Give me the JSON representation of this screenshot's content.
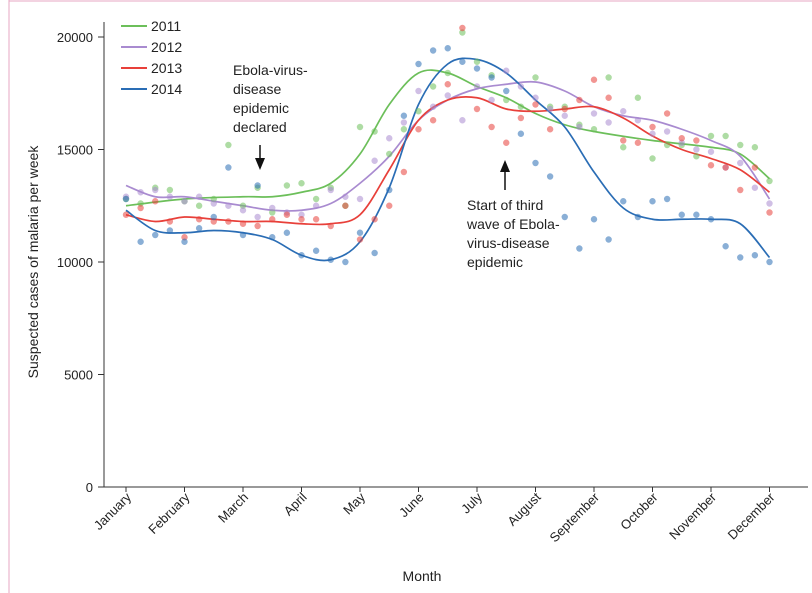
{
  "chart_data": {
    "type": "line",
    "xlabel": "Month",
    "ylabel": "Suspected cases of malaria per week",
    "ylim": [
      0,
      20500
    ],
    "yticks": [
      0,
      5000,
      10000,
      15000,
      20000
    ],
    "ytick_labels": [
      "0",
      "5000",
      "10000",
      "15000",
      "20000"
    ],
    "months": [
      "January",
      "February",
      "March",
      "April",
      "May",
      "June",
      "July",
      "August",
      "September",
      "October",
      "November",
      "December"
    ],
    "legend_position": "top-left",
    "grid": false,
    "series": [
      {
        "name": "2011",
        "color": "#6cbf5a",
        "smooth": [
          [
            0,
            12500
          ],
          [
            1,
            12800
          ],
          [
            2,
            12900
          ],
          [
            2.5,
            12900
          ],
          [
            3,
            13100
          ],
          [
            3.5,
            13500
          ],
          [
            4,
            14800
          ],
          [
            4.5,
            17000
          ],
          [
            5,
            18400
          ],
          [
            5.5,
            18400
          ],
          [
            6,
            17800
          ],
          [
            6.5,
            17300
          ],
          [
            7,
            16600
          ],
          [
            7.5,
            16100
          ],
          [
            8,
            15800
          ],
          [
            9,
            15400
          ],
          [
            10,
            15100
          ],
          [
            10.5,
            14800
          ],
          [
            11,
            13700
          ]
        ],
        "points": [
          [
            0,
            12800
          ],
          [
            0.25,
            12600
          ],
          [
            0.5,
            13300
          ],
          [
            0.75,
            13200
          ],
          [
            1,
            12700
          ],
          [
            1.25,
            12500
          ],
          [
            1.5,
            12800
          ],
          [
            1.75,
            15200
          ],
          [
            2,
            12500
          ],
          [
            2.25,
            13300
          ],
          [
            2.5,
            12200
          ],
          [
            2.75,
            13400
          ],
          [
            3,
            13500
          ],
          [
            3.25,
            12800
          ],
          [
            3.5,
            13300
          ],
          [
            3.75,
            12500
          ],
          [
            4,
            16000
          ],
          [
            4.25,
            15800
          ],
          [
            4.5,
            14800
          ],
          [
            4.75,
            15900
          ],
          [
            5,
            16700
          ],
          [
            5.25,
            17800
          ],
          [
            5.5,
            18400
          ],
          [
            5.75,
            20200
          ],
          [
            6,
            18900
          ],
          [
            6.25,
            18300
          ],
          [
            6.5,
            17200
          ],
          [
            6.75,
            16900
          ],
          [
            7,
            18200
          ],
          [
            7.25,
            16900
          ],
          [
            7.5,
            16900
          ],
          [
            7.75,
            16100
          ],
          [
            8,
            15900
          ],
          [
            8.25,
            18200
          ],
          [
            8.5,
            15100
          ],
          [
            8.75,
            17300
          ],
          [
            9,
            14600
          ],
          [
            9.25,
            15200
          ],
          [
            9.5,
            15200
          ],
          [
            9.75,
            14700
          ],
          [
            10,
            15600
          ],
          [
            10.25,
            15600
          ],
          [
            10.5,
            15200
          ],
          [
            10.75,
            15100
          ],
          [
            11,
            13600
          ]
        ]
      },
      {
        "name": "2012",
        "color": "#a98bd0",
        "smooth": [
          [
            0,
            13400
          ],
          [
            0.5,
            12900
          ],
          [
            1,
            12900
          ],
          [
            1.5,
            12700
          ],
          [
            2,
            12500
          ],
          [
            2.5,
            12300
          ],
          [
            3,
            12300
          ],
          [
            3.5,
            12600
          ],
          [
            4,
            13500
          ],
          [
            4.5,
            14700
          ],
          [
            5,
            16300
          ],
          [
            5.5,
            17200
          ],
          [
            6,
            17700
          ],
          [
            6.5,
            17900
          ],
          [
            7,
            18000
          ],
          [
            7.5,
            17600
          ],
          [
            8,
            16900
          ],
          [
            8.5,
            16500
          ],
          [
            9,
            16300
          ],
          [
            9.5,
            15900
          ],
          [
            10,
            15400
          ],
          [
            10.5,
            14700
          ],
          [
            11,
            12800
          ]
        ],
        "points": [
          [
            0,
            12900
          ],
          [
            0.25,
            13100
          ],
          [
            0.5,
            13200
          ],
          [
            0.75,
            12900
          ],
          [
            1,
            12700
          ],
          [
            1.25,
            12900
          ],
          [
            1.5,
            12600
          ],
          [
            1.75,
            12500
          ],
          [
            2,
            12300
          ],
          [
            2.25,
            12000
          ],
          [
            2.5,
            12400
          ],
          [
            2.75,
            12200
          ],
          [
            3,
            12100
          ],
          [
            3.25,
            12500
          ],
          [
            3.5,
            13200
          ],
          [
            3.75,
            12900
          ],
          [
            4,
            12800
          ],
          [
            4.25,
            14500
          ],
          [
            4.5,
            15500
          ],
          [
            4.75,
            16200
          ],
          [
            5,
            17600
          ],
          [
            5.25,
            16900
          ],
          [
            5.5,
            17400
          ],
          [
            5.75,
            16300
          ],
          [
            6,
            17800
          ],
          [
            6.25,
            17200
          ],
          [
            6.5,
            18500
          ],
          [
            6.75,
            17800
          ],
          [
            7,
            17300
          ],
          [
            7.25,
            16800
          ],
          [
            7.5,
            16500
          ],
          [
            7.75,
            16000
          ],
          [
            8,
            16600
          ],
          [
            8.25,
            16200
          ],
          [
            8.5,
            16700
          ],
          [
            8.75,
            16300
          ],
          [
            9,
            15700
          ],
          [
            9.25,
            15800
          ],
          [
            9.5,
            15300
          ],
          [
            9.75,
            15000
          ],
          [
            10,
            14900
          ],
          [
            10.25,
            14200
          ],
          [
            10.5,
            14400
          ],
          [
            10.75,
            13300
          ],
          [
            11,
            12600
          ]
        ]
      },
      {
        "name": "2013",
        "color": "#e8403a",
        "smooth": [
          [
            0,
            12100
          ],
          [
            0.5,
            11800
          ],
          [
            1,
            12000
          ],
          [
            1.5,
            11900
          ],
          [
            2,
            11800
          ],
          [
            2.5,
            11800
          ],
          [
            3,
            11700
          ],
          [
            3.5,
            11700
          ],
          [
            4,
            12100
          ],
          [
            4.5,
            14100
          ],
          [
            5,
            16300
          ],
          [
            5.5,
            17200
          ],
          [
            6,
            17300
          ],
          [
            6.5,
            16800
          ],
          [
            7,
            16700
          ],
          [
            7.5,
            16800
          ],
          [
            8,
            16900
          ],
          [
            8.5,
            16400
          ],
          [
            9,
            15600
          ],
          [
            9.5,
            15000
          ],
          [
            10,
            14600
          ],
          [
            10.5,
            14100
          ],
          [
            11,
            13100
          ]
        ],
        "points": [
          [
            0,
            12100
          ],
          [
            0.25,
            12400
          ],
          [
            0.5,
            12700
          ],
          [
            0.75,
            11800
          ],
          [
            1,
            11100
          ],
          [
            1.25,
            11900
          ],
          [
            1.5,
            11800
          ],
          [
            1.75,
            11800
          ],
          [
            2,
            11700
          ],
          [
            2.25,
            11600
          ],
          [
            2.5,
            11900
          ],
          [
            2.75,
            12100
          ],
          [
            3,
            11900
          ],
          [
            3.25,
            11900
          ],
          [
            3.5,
            11600
          ],
          [
            3.75,
            12500
          ],
          [
            4,
            11000
          ],
          [
            4.25,
            11900
          ],
          [
            4.5,
            12500
          ],
          [
            4.75,
            14000
          ],
          [
            5,
            15900
          ],
          [
            5.25,
            16300
          ],
          [
            5.5,
            17900
          ],
          [
            5.75,
            20400
          ],
          [
            6,
            16800
          ],
          [
            6.25,
            16000
          ],
          [
            6.5,
            15300
          ],
          [
            6.75,
            16400
          ],
          [
            7,
            17000
          ],
          [
            7.25,
            15900
          ],
          [
            7.5,
            16800
          ],
          [
            7.75,
            17200
          ],
          [
            8,
            18100
          ],
          [
            8.25,
            17300
          ],
          [
            8.5,
            15400
          ],
          [
            8.75,
            15300
          ],
          [
            9,
            16000
          ],
          [
            9.25,
            16600
          ],
          [
            9.5,
            15500
          ],
          [
            9.75,
            15400
          ],
          [
            10,
            14300
          ],
          [
            10.25,
            14200
          ],
          [
            10.5,
            13200
          ],
          [
            10.75,
            14200
          ],
          [
            11,
            12200
          ]
        ]
      },
      {
        "name": "2014",
        "color": "#2a6db5",
        "smooth": [
          [
            0,
            12300
          ],
          [
            0.5,
            11400
          ],
          [
            1,
            11300
          ],
          [
            1.5,
            11400
          ],
          [
            2,
            11300
          ],
          [
            2.5,
            11000
          ],
          [
            3,
            10300
          ],
          [
            3.5,
            10100
          ],
          [
            4,
            10900
          ],
          [
            4.5,
            13300
          ],
          [
            5,
            17000
          ],
          [
            5.5,
            18800
          ],
          [
            6,
            19000
          ],
          [
            6.5,
            18400
          ],
          [
            7,
            17200
          ],
          [
            7.5,
            16000
          ],
          [
            8,
            14000
          ],
          [
            8.5,
            12400
          ],
          [
            9,
            11900
          ],
          [
            9.5,
            11900
          ],
          [
            10,
            11900
          ],
          [
            10.5,
            11700
          ],
          [
            11,
            10200
          ]
        ],
        "points": [
          [
            0,
            12800
          ],
          [
            0.25,
            10900
          ],
          [
            0.5,
            11200
          ],
          [
            0.75,
            11400
          ],
          [
            1,
            10900
          ],
          [
            1.25,
            11500
          ],
          [
            1.5,
            12000
          ],
          [
            1.75,
            14200
          ],
          [
            2,
            11200
          ],
          [
            2.25,
            13400
          ],
          [
            2.5,
            11100
          ],
          [
            2.75,
            11300
          ],
          [
            3,
            10300
          ],
          [
            3.25,
            10500
          ],
          [
            3.5,
            10100
          ],
          [
            3.75,
            10000
          ],
          [
            4,
            11300
          ],
          [
            4.25,
            10400
          ],
          [
            4.5,
            13200
          ],
          [
            4.75,
            16500
          ],
          [
            5,
            18800
          ],
          [
            5.25,
            19400
          ],
          [
            5.5,
            19500
          ],
          [
            5.75,
            18900
          ],
          [
            6,
            18600
          ],
          [
            6.25,
            18200
          ],
          [
            6.5,
            17600
          ],
          [
            6.75,
            15700
          ],
          [
            7,
            14400
          ],
          [
            7.25,
            13800
          ],
          [
            7.5,
            12000
          ],
          [
            7.75,
            10600
          ],
          [
            8,
            11900
          ],
          [
            8.25,
            11000
          ],
          [
            8.5,
            12700
          ],
          [
            8.75,
            12000
          ],
          [
            9,
            12700
          ],
          [
            9.25,
            12800
          ],
          [
            9.5,
            12100
          ],
          [
            9.75,
            12100
          ],
          [
            10,
            11900
          ],
          [
            10.25,
            10700
          ],
          [
            10.5,
            10200
          ],
          [
            10.75,
            10300
          ],
          [
            11,
            10000
          ]
        ]
      }
    ],
    "annotations": [
      {
        "lines": [
          "Ebola-virus-",
          "disease",
          "epidemic",
          "declared"
        ],
        "arrow": "down",
        "x_month": 2.6,
        "arrow_tip_value": 12900
      },
      {
        "lines": [
          "Start of third",
          "wave of Ebola-",
          "virus-disease",
          "epidemic"
        ],
        "arrow": "up",
        "x_month": 6.45,
        "arrow_tip_value": 18400
      }
    ]
  }
}
